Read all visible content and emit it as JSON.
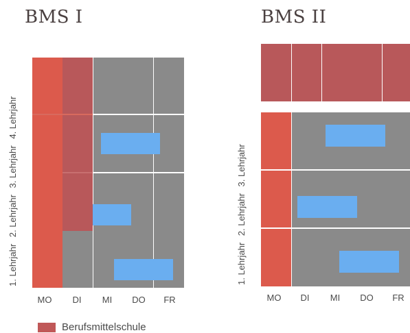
{
  "bms1": {
    "title": "BMS I",
    "years": [
      "1. Lehrjahr",
      "2. Lehrjahr",
      "3. Lehrjahr",
      "4. Lehrjahr"
    ],
    "days": [
      "MO",
      "DI",
      "MI",
      "DO",
      "FR"
    ]
  },
  "bms2": {
    "title": "BMS II",
    "years": [
      "1. Lehrjahr",
      "2. Lehrjahr",
      "3. Lehrjahr"
    ],
    "days": [
      "MO",
      "DI",
      "MI",
      "DO",
      "FR"
    ]
  },
  "legend": {
    "label": "Berufsmittelschule",
    "color": "#c05858"
  },
  "colors": {
    "school_day": "#dc5a4c",
    "bms_day": "#b8585a",
    "work": "#8a8a8a",
    "highlight": "#6aaef0"
  }
}
